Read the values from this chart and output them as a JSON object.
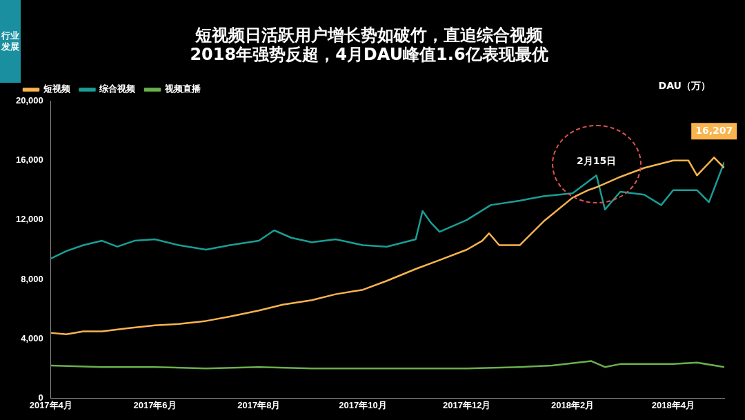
{
  "chart_data": {
    "type": "line",
    "title": "短视频日活跃用户增长势如破竹，直追综合视频",
    "subtitle": "2018年强势反超，4月DAU峰值1.6亿表现最优",
    "ylabel": "DAU（万）",
    "legend": "top left",
    "grid": false,
    "marker": "none",
    "line_style": "solid",
    "xlim": [
      "2017-04-01",
      "2018-05-01"
    ],
    "xticks": [
      {
        "value": "2017-04-01",
        "label": "2017年4月"
      },
      {
        "value": "2017-06-01",
        "label": "2017年6月"
      },
      {
        "value": "2017-08-01",
        "label": "2017年8月"
      },
      {
        "value": "2017-10-01",
        "label": "2017年10月"
      },
      {
        "value": "2017-12-01",
        "label": "2017年12月"
      },
      {
        "value": "2018-02-01",
        "label": "2018年2月"
      },
      {
        "value": "2018-04-01",
        "label": "2018年4月"
      }
    ],
    "ylim": [
      0,
      20000
    ],
    "yticks": [
      0,
      {
        "value": 4000,
        "label": "4,000"
      },
      {
        "value": 8000,
        "label": "8,000"
      },
      {
        "value": 12000,
        "label": "12,000"
      },
      {
        "value": 16000,
        "label": "16,000"
      },
      {
        "value": 20000,
        "label": "20,000"
      }
    ],
    "annotations": [
      "行业发展",
      {
        "text": "2月15日",
        "x": "2018-02-15",
        "y": 15000
      },
      {
        "text": "16,207",
        "x": "2018-04-25",
        "y": 16207
      }
    ],
    "series": [
      {
        "name": "短视频",
        "color": "#f9b44e",
        "x": [
          "2017-04-01",
          "2017-04-10",
          "2017-04-20",
          "2017-05-01",
          "2017-05-15",
          "2017-06-01",
          "2017-06-15",
          "2017-07-01",
          "2017-07-15",
          "2017-08-01",
          "2017-08-15",
          "2017-09-01",
          "2017-09-15",
          "2017-10-01",
          "2017-10-15",
          "2017-11-01",
          "2017-11-15",
          "2017-12-01",
          "2017-12-10",
          "2017-12-14",
          "2017-12-20",
          "2018-01-01",
          "2018-01-15",
          "2018-02-01",
          "2018-02-10",
          "2018-02-15",
          "2018-03-01",
          "2018-03-15",
          "2018-04-01",
          "2018-04-10",
          "2018-04-15",
          "2018-04-25",
          "2018-05-01"
        ],
        "values": [
          4400,
          4300,
          4500,
          4500,
          4700,
          4900,
          5000,
          5200,
          5500,
          5900,
          6300,
          6600,
          7000,
          7300,
          7900,
          8700,
          9300,
          10000,
          10600,
          11100,
          10300,
          10300,
          11900,
          13500,
          14000,
          14200,
          14900,
          15500,
          16000,
          16000,
          15000,
          16207,
          15500
        ]
      },
      {
        "name": "综合视频",
        "color": "#1a9e96",
        "x": [
          "2017-04-01",
          "2017-04-10",
          "2017-04-20",
          "2017-05-01",
          "2017-05-10",
          "2017-05-20",
          "2017-06-01",
          "2017-06-15",
          "2017-07-01",
          "2017-07-15",
          "2017-08-01",
          "2017-08-10",
          "2017-08-20",
          "2017-09-01",
          "2017-09-15",
          "2017-10-01",
          "2017-10-15",
          "2017-11-01",
          "2017-11-05",
          "2017-11-10",
          "2017-11-15",
          "2017-12-01",
          "2017-12-15",
          "2018-01-01",
          "2018-01-15",
          "2018-02-01",
          "2018-02-15",
          "2018-02-20",
          "2018-03-01",
          "2018-03-15",
          "2018-03-25",
          "2018-04-01",
          "2018-04-15",
          "2018-04-22",
          "2018-05-01"
        ],
        "values": [
          9400,
          9900,
          10300,
          10600,
          10200,
          10600,
          10700,
          10300,
          10000,
          10300,
          10600,
          11300,
          10800,
          10500,
          10700,
          10300,
          10200,
          10700,
          12600,
          11800,
          11200,
          12000,
          13000,
          13300,
          13600,
          13800,
          15000,
          12700,
          13900,
          13700,
          13000,
          14000,
          14000,
          13200,
          15900
        ]
      },
      {
        "name": "视频直播",
        "color": "#6ab04c",
        "x": [
          "2017-04-01",
          "2017-05-01",
          "2017-06-01",
          "2017-07-01",
          "2017-08-01",
          "2017-09-01",
          "2017-10-01",
          "2017-11-01",
          "2017-12-01",
          "2018-01-01",
          "2018-01-20",
          "2018-02-12",
          "2018-02-20",
          "2018-03-01",
          "2018-04-01",
          "2018-04-15",
          "2018-05-01"
        ],
        "values": [
          2200,
          2100,
          2100,
          2000,
          2100,
          2000,
          2000,
          2000,
          2000,
          2100,
          2200,
          2500,
          2100,
          2300,
          2300,
          2400,
          2100
        ]
      }
    ]
  }
}
